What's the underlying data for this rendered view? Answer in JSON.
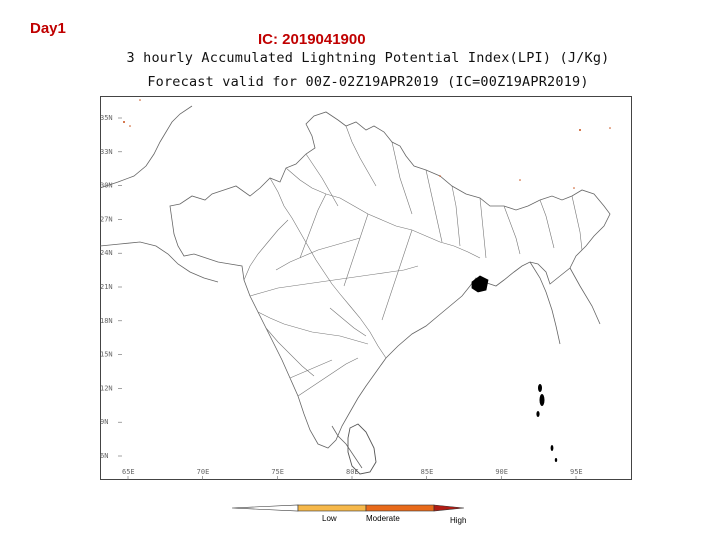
{
  "header": {
    "day_label": "Day1",
    "ic_label": "IC: 2019041900",
    "title_line1": "3 hourly Accumulated Lightning Potential Index(LPI) (J/Kg)",
    "title_line2": "Forecast valid for 00Z-02Z19APR2019 (IC=00Z19APR2019)"
  },
  "map": {
    "y_ticks": [
      "35N",
      "33N",
      "30N",
      "27N",
      "24N",
      "21N",
      "18N",
      "15N",
      "12N",
      "9N",
      "6N"
    ],
    "x_ticks": [
      "65E",
      "70E",
      "75E",
      "80E",
      "85E",
      "90E",
      "95E"
    ],
    "highlight_color": "#000000",
    "boundary_color": "#555555"
  },
  "legend": {
    "labels": [
      "Low",
      "Moderate",
      "High"
    ],
    "colors": [
      "#ffffff",
      "#f6b84a",
      "#e86a1a",
      "#b01c14"
    ]
  }
}
